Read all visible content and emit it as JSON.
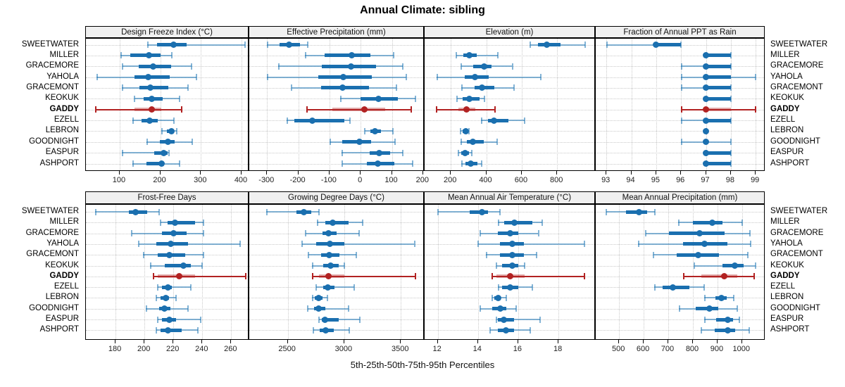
{
  "title": "Annual Climate: sibling",
  "caption": "5th-25th-50th-75th-95th Percentiles",
  "percentiles": [
    "5th",
    "25th",
    "50th",
    "75th",
    "95th"
  ],
  "stations": [
    "SWEETWATER",
    "MILLER",
    "GRACEMORE",
    "YAHOLA",
    "GRACEMONT",
    "KEOKUK",
    "GADDY",
    "EZELL",
    "LEBRON",
    "GOODNIGHT",
    "EASPUR",
    "ASHPORT"
  ],
  "highlight_station": "GADDY",
  "colors": {
    "blue": "#1A6FAF",
    "blue_light": "rgba(31,119,180,0.55)",
    "red": "#B22222",
    "red_light": "rgba(178,34,34,0.38)",
    "strip_bg": "#F0F0F0",
    "grid_line": "#C9C9C9",
    "panel_border": "#000000"
  },
  "chart_data": [
    {
      "type": "dotplot-interval",
      "title": "Design Freeze Index (°C)",
      "row": 1,
      "col": 1,
      "xlim": [
        17,
        419
      ],
      "ticks": [
        100,
        200,
        300,
        400
      ],
      "grid": "dotted",
      "values": [
        [
          168,
          192,
          232,
          265,
          408
        ],
        [
          102,
          126,
          172,
          200,
          228
        ],
        [
          107,
          147,
          183,
          227,
          277
        ],
        [
          43,
          136,
          170,
          223,
          289
        ],
        [
          106,
          149,
          175,
          219,
          268
        ],
        [
          136,
          159,
          179,
          206,
          248
        ],
        [
          40,
          136,
          179,
          202,
          253
        ],
        [
          132,
          153,
          174,
          193,
          233
        ],
        [
          203,
          216,
          227,
          234,
          240
        ],
        [
          166,
          199,
          219,
          236,
          279
        ],
        [
          106,
          185,
          208,
          217,
          221
        ],
        [
          132,
          166,
          203,
          210,
          248
        ]
      ]
    },
    {
      "type": "dotplot-interval",
      "title": "Effective Precipitation (mm)",
      "row": 1,
      "col": 2,
      "xlim": [
        -357,
        205
      ],
      "ticks": [
        -300,
        -200,
        -100,
        0,
        100,
        200
      ],
      "grid": "dotted",
      "values": [
        [
          -300,
          -260,
          -230,
          -195,
          -170
        ],
        [
          -178,
          -116,
          -28,
          32,
          106
        ],
        [
          -264,
          -124,
          -31,
          49,
          135
        ],
        [
          -300,
          -135,
          -56,
          36,
          146
        ],
        [
          -222,
          -127,
          -58,
          26,
          115
        ],
        [
          -65,
          0,
          56,
          120,
          176
        ],
        [
          -174,
          -90,
          11,
          79,
          163
        ],
        [
          -237,
          -213,
          -155,
          -52,
          -34
        ],
        [
          13,
          30,
          45,
          64,
          103
        ],
        [
          -99,
          -60,
          -5,
          34,
          111
        ],
        [
          -61,
          28,
          60,
          95,
          135
        ],
        [
          -60,
          20,
          54,
          109,
          167
        ]
      ]
    },
    {
      "type": "dotplot-interval",
      "title": "Elevation (m)",
      "row": 1,
      "col": 3,
      "xlim": [
        52,
        1018
      ],
      "ticks": [
        200,
        400,
        600,
        800
      ],
      "grid": "dotted",
      "values": [
        [
          647,
          693,
          743,
          819,
          958
        ],
        [
          230,
          272,
          305,
          346,
          465
        ],
        [
          258,
          325,
          386,
          428,
          547
        ],
        [
          120,
          279,
          338,
          413,
          709
        ],
        [
          259,
          334,
          374,
          446,
          558
        ],
        [
          233,
          268,
          305,
          361,
          391
        ],
        [
          117,
          242,
          288,
          338,
          450
        ],
        [
          370,
          409,
          443,
          525,
          617
        ],
        [
          253,
          268,
          286,
          299,
          304
        ],
        [
          255,
          291,
          324,
          387,
          463
        ],
        [
          242,
          259,
          279,
          301,
          317
        ],
        [
          259,
          282,
          314,
          351,
          374
        ]
      ]
    },
    {
      "type": "dotplot-interval",
      "title": "Fraction of Annual PPT as Rain",
      "row": 1,
      "col": 4,
      "xlim": [
        92.57,
        99.39
      ],
      "ticks": [
        93,
        94,
        95,
        96,
        97,
        98,
        99
      ],
      "grid": "dotted",
      "values": [
        [
          93,
          95,
          95,
          96,
          96
        ],
        [
          97,
          97,
          97,
          98,
          98
        ],
        [
          96,
          97,
          97,
          98,
          98
        ],
        [
          96,
          97,
          97,
          98,
          99
        ],
        [
          96,
          97,
          97,
          98,
          98
        ],
        [
          97,
          97,
          97,
          98,
          98
        ],
        [
          96,
          97,
          97,
          98,
          99
        ],
        [
          96,
          97,
          97,
          98,
          98
        ],
        [
          97,
          97,
          97,
          97,
          97
        ],
        [
          96,
          97,
          97,
          97,
          98
        ],
        [
          97,
          97,
          97,
          98,
          98
        ],
        [
          97,
          97,
          97,
          98,
          98
        ]
      ]
    },
    {
      "type": "dotplot-interval",
      "title": "Frost-Free Days",
      "row": 2,
      "col": 1,
      "xlim": [
        159.5,
        272.5
      ],
      "ticks": [
        180,
        200,
        220,
        240,
        260
      ],
      "grid": "dotted",
      "values": [
        [
          166,
          189,
          194,
          202,
          210
        ],
        [
          211,
          216,
          221,
          235,
          241
        ],
        [
          191,
          212,
          220,
          229,
          241
        ],
        [
          196,
          208,
          218,
          230,
          266
        ],
        [
          199,
          209,
          217,
          228,
          241
        ],
        [
          204,
          214,
          227,
          232,
          240
        ],
        [
          206,
          209,
          224,
          235,
          270
        ],
        [
          209,
          212,
          216,
          219,
          232
        ],
        [
          208,
          211,
          215,
          217,
          222
        ],
        [
          201,
          210,
          214,
          218,
          230
        ],
        [
          209,
          212,
          217,
          222,
          239
        ],
        [
          208,
          211,
          216,
          226,
          237
        ]
      ]
    },
    {
      "type": "dotplot-interval",
      "title": "Growing Degree Days (°C)",
      "row": 2,
      "col": 2,
      "xlim": [
        2160,
        3710
      ],
      "ticks": [
        2500,
        3000,
        3500
      ],
      "grid": "dotted",
      "values": [
        [
          2310,
          2575,
          2645,
          2710,
          2775
        ],
        [
          2760,
          2835,
          2900,
          3040,
          3160
        ],
        [
          2655,
          2805,
          2860,
          2930,
          3130
        ],
        [
          2625,
          2750,
          2870,
          3000,
          3620
        ],
        [
          2680,
          2795,
          2865,
          2955,
          3105
        ],
        [
          2715,
          2815,
          2880,
          2950,
          3000
        ],
        [
          2715,
          2775,
          2860,
          3000,
          3630
        ],
        [
          2750,
          2815,
          2855,
          2915,
          3085
        ],
        [
          2715,
          2740,
          2770,
          2805,
          2850
        ],
        [
          2675,
          2735,
          2775,
          2835,
          3040
        ],
        [
          2775,
          2800,
          2830,
          2950,
          3140
        ],
        [
          2725,
          2785,
          2835,
          2905,
          3045
        ]
      ]
    },
    {
      "type": "dotplot-interval",
      "title": "Mean Annual Air Temperature (°C)",
      "row": 2,
      "col": 3,
      "xlim": [
        11.35,
        19.85
      ],
      "ticks": [
        12,
        14,
        16,
        18
      ],
      "grid": "dotted",
      "values": [
        [
          12.0,
          13.6,
          14.2,
          14.5,
          15.1
        ],
        [
          15.0,
          15.3,
          15.8,
          16.7,
          17.2
        ],
        [
          14.1,
          15.0,
          15.6,
          16.0,
          17.0
        ],
        [
          14.0,
          15.1,
          15.7,
          16.3,
          19.3
        ],
        [
          14.4,
          15.1,
          15.7,
          16.3,
          16.9
        ],
        [
          14.9,
          15.2,
          15.7,
          16.0,
          16.3
        ],
        [
          14.7,
          14.9,
          15.6,
          16.3,
          19.3
        ],
        [
          15.0,
          15.2,
          15.6,
          16.0,
          16.7
        ],
        [
          14.7,
          14.8,
          15.0,
          15.1,
          15.4
        ],
        [
          14.1,
          14.7,
          15.1,
          15.4,
          15.9
        ],
        [
          14.9,
          15.0,
          15.3,
          15.8,
          17.1
        ],
        [
          14.6,
          15.0,
          15.4,
          15.8,
          16.6
        ]
      ]
    },
    {
      "type": "dotplot-interval",
      "title": "Mean Annual Precipitation (mm)",
      "row": 2,
      "col": 4,
      "xlim": [
        405,
        1095
      ],
      "ticks": [
        500,
        600,
        700,
        800,
        900,
        1000
      ],
      "grid": "dotted",
      "values": [
        [
          447,
          529,
          582,
          615,
          646
        ],
        [
          741,
          800,
          878,
          919,
          1000
        ],
        [
          608,
          703,
          827,
          928,
          1031
        ],
        [
          577,
          760,
          846,
          941,
          1036
        ],
        [
          639,
          734,
          822,
          905,
          1023
        ],
        [
          805,
          919,
          969,
          1007,
          1055
        ],
        [
          760,
          833,
          926,
          981,
          1049
        ],
        [
          643,
          677,
          719,
          786,
          846
        ],
        [
          846,
          893,
          916,
          938,
          966
        ],
        [
          743,
          810,
          868,
          903,
          981
        ],
        [
          846,
          895,
          943,
          963,
          988
        ],
        [
          833,
          890,
          941,
          971,
          1028
        ]
      ]
    }
  ]
}
